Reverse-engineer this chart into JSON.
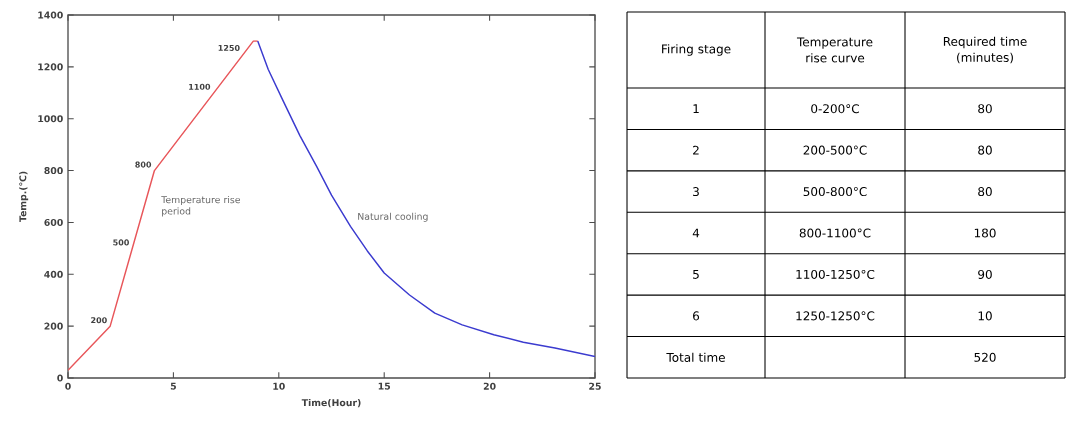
{
  "chart_data": [
    {
      "type": "line",
      "xlabel": "Time(Hour)",
      "ylabel": "Temp.(℃)",
      "xlim": [
        0,
        25
      ],
      "ylim": [
        0,
        1400
      ],
      "xticks": [
        0,
        5,
        10,
        15,
        20,
        25
      ],
      "yticks": [
        0,
        200,
        400,
        600,
        800,
        1000,
        1200,
        1400
      ],
      "series": [
        {
          "color": "#e8565a",
          "x": [
            0,
            2,
            4.1,
            8.8,
            9.0
          ],
          "values": [
            30,
            200,
            800,
            1300,
            1300
          ]
        },
        {
          "color": "#3b3bcf",
          "x": [
            9.0,
            9.5,
            10.2,
            11.0,
            11.8,
            12.5,
            13.4,
            14.2,
            15.0,
            16.2,
            17.4,
            18.7,
            20.2,
            21.6,
            23.1,
            25
          ],
          "values": [
            1300,
            1190,
            1070,
            935,
            815,
            705,
            585,
            490,
            405,
            320,
            250,
            205,
            167,
            138,
            116,
            83
          ]
        }
      ],
      "annotations": [
        {
          "text": "200",
          "x": 2,
          "y": 200
        },
        {
          "text": "500",
          "x": 3.05,
          "y": 500
        },
        {
          "text": "800",
          "x": 4.1,
          "y": 800
        },
        {
          "text": "1100",
          "x": 6.9,
          "y": 1100
        },
        {
          "text": "1250",
          "x": 8.3,
          "y": 1250
        },
        "Temperature rise period",
        "Natural cooling"
      ]
    },
    {
      "type": "heatmap",
      "ylabel": "Firing stage",
      "categories": [
        "Temperature rise curve",
        "Required time (minutes)"
      ],
      "y_categories": [
        "1",
        "2",
        "3",
        "4",
        "5",
        "6",
        "Total time"
      ],
      "cells": [
        [
          null,
          null
        ],
        [
          null,
          null
        ],
        [
          null,
          null
        ],
        [
          null,
          null
        ],
        [
          null,
          null
        ],
        [
          null,
          null
        ],
        [
          null,
          null
        ]
      ],
      "cell_labels": [
        [
          "0-200°C",
          "80"
        ],
        [
          "200-500°C",
          "80"
        ],
        [
          "500-800°C",
          "80"
        ],
        [
          "800-1100°C",
          "180"
        ],
        [
          "1100-1250°C",
          "90"
        ],
        [
          "1250-1250°C",
          "10"
        ],
        [
          null,
          "520"
        ]
      ]
    }
  ]
}
